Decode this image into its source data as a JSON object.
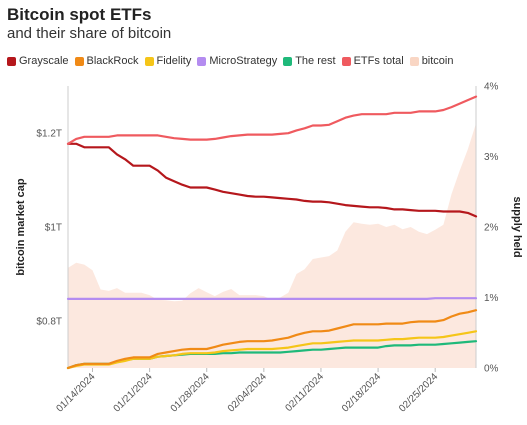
{
  "chart_data": {
    "type": "line",
    "title": "Bitcoin spot ETFs",
    "subtitle": "and their share of bitcoin",
    "ylabel_left": "bitcoin market cap",
    "ylabel_right": "supply held",
    "y_left_ticks": [
      "$0.8T",
      "$1T",
      "$1.2T"
    ],
    "y_right_ticks": [
      "0%",
      "1%",
      "2%",
      "3%",
      "4%"
    ],
    "x_ticks": [
      "01/14/2024",
      "01/21/2024",
      "01/28/2024",
      "02/04/2024",
      "02/11/2024",
      "02/18/2024",
      "02/25/2024"
    ],
    "x_range": [
      "2024-01-11",
      "2024-03-01"
    ],
    "y_left_range": [
      0.7,
      1.3
    ],
    "y_right_range": [
      0,
      4
    ],
    "grid": false,
    "legend_position": "top-left",
    "x": [
      "2024-01-11",
      "2024-01-12",
      "2024-01-13",
      "2024-01-14",
      "2024-01-15",
      "2024-01-16",
      "2024-01-17",
      "2024-01-18",
      "2024-01-19",
      "2024-01-20",
      "2024-01-21",
      "2024-01-22",
      "2024-01-23",
      "2024-01-24",
      "2024-01-25",
      "2024-01-26",
      "2024-01-27",
      "2024-01-28",
      "2024-01-29",
      "2024-01-30",
      "2024-01-31",
      "2024-02-01",
      "2024-02-02",
      "2024-02-03",
      "2024-02-04",
      "2024-02-05",
      "2024-02-06",
      "2024-02-07",
      "2024-02-08",
      "2024-02-09",
      "2024-02-10",
      "2024-02-11",
      "2024-02-12",
      "2024-02-13",
      "2024-02-14",
      "2024-02-15",
      "2024-02-16",
      "2024-02-17",
      "2024-02-18",
      "2024-02-19",
      "2024-02-20",
      "2024-02-21",
      "2024-02-22",
      "2024-02-23",
      "2024-02-24",
      "2024-02-25",
      "2024-02-26",
      "2024-02-27",
      "2024-02-28",
      "2024-02-29",
      "2024-03-01"
    ],
    "series": [
      {
        "name": "Grayscale",
        "color": "#b5171c",
        "axis": "right",
        "values": [
          3.18,
          3.18,
          3.13,
          3.13,
          3.13,
          3.13,
          3.03,
          2.96,
          2.87,
          2.87,
          2.87,
          2.8,
          2.7,
          2.65,
          2.6,
          2.56,
          2.56,
          2.56,
          2.53,
          2.5,
          2.48,
          2.46,
          2.44,
          2.43,
          2.43,
          2.42,
          2.41,
          2.4,
          2.39,
          2.37,
          2.36,
          2.36,
          2.35,
          2.33,
          2.31,
          2.3,
          2.29,
          2.28,
          2.28,
          2.27,
          2.25,
          2.25,
          2.24,
          2.23,
          2.23,
          2.23,
          2.22,
          2.22,
          2.22,
          2.2,
          2.15
        ]
      },
      {
        "name": "BlackRock",
        "color": "#f08a16",
        "axis": "right",
        "values": [
          0.0,
          0.04,
          0.06,
          0.06,
          0.06,
          0.06,
          0.1,
          0.13,
          0.15,
          0.15,
          0.15,
          0.2,
          0.22,
          0.24,
          0.26,
          0.27,
          0.27,
          0.27,
          0.3,
          0.33,
          0.35,
          0.37,
          0.38,
          0.38,
          0.38,
          0.39,
          0.41,
          0.43,
          0.47,
          0.5,
          0.52,
          0.52,
          0.53,
          0.56,
          0.59,
          0.62,
          0.62,
          0.62,
          0.62,
          0.63,
          0.63,
          0.63,
          0.65,
          0.66,
          0.66,
          0.66,
          0.68,
          0.73,
          0.77,
          0.79,
          0.82
        ]
      },
      {
        "name": "Fidelity",
        "color": "#f5c518",
        "axis": "right",
        "values": [
          0.0,
          0.03,
          0.05,
          0.05,
          0.05,
          0.05,
          0.08,
          0.1,
          0.13,
          0.13,
          0.13,
          0.16,
          0.17,
          0.18,
          0.2,
          0.21,
          0.21,
          0.21,
          0.22,
          0.24,
          0.25,
          0.26,
          0.27,
          0.27,
          0.27,
          0.27,
          0.28,
          0.29,
          0.31,
          0.33,
          0.35,
          0.35,
          0.36,
          0.37,
          0.38,
          0.39,
          0.39,
          0.39,
          0.39,
          0.4,
          0.41,
          0.41,
          0.42,
          0.43,
          0.43,
          0.43,
          0.44,
          0.46,
          0.48,
          0.5,
          0.52
        ]
      },
      {
        "name": "MicroStrategy",
        "color": "#b48cf0",
        "axis": "right",
        "values": [
          0.98,
          0.98,
          0.98,
          0.98,
          0.98,
          0.98,
          0.98,
          0.98,
          0.98,
          0.98,
          0.98,
          0.98,
          0.98,
          0.98,
          0.98,
          0.98,
          0.98,
          0.98,
          0.98,
          0.98,
          0.98,
          0.98,
          0.98,
          0.98,
          0.98,
          0.98,
          0.98,
          0.98,
          0.98,
          0.98,
          0.98,
          0.98,
          0.98,
          0.98,
          0.98,
          0.98,
          0.98,
          0.98,
          0.98,
          0.98,
          0.98,
          0.98,
          0.98,
          0.98,
          0.98,
          0.99,
          0.99,
          0.99,
          0.99,
          0.99,
          0.99
        ]
      },
      {
        "name": "The rest",
        "color": "#1fb97a",
        "axis": "right",
        "values": [
          0.0,
          0.04,
          0.06,
          0.06,
          0.06,
          0.06,
          0.09,
          0.11,
          0.13,
          0.13,
          0.13,
          0.16,
          0.17,
          0.18,
          0.19,
          0.2,
          0.2,
          0.2,
          0.2,
          0.21,
          0.21,
          0.22,
          0.22,
          0.22,
          0.22,
          0.22,
          0.22,
          0.23,
          0.24,
          0.25,
          0.26,
          0.26,
          0.27,
          0.28,
          0.29,
          0.29,
          0.29,
          0.29,
          0.29,
          0.31,
          0.32,
          0.32,
          0.32,
          0.33,
          0.33,
          0.33,
          0.34,
          0.35,
          0.36,
          0.37,
          0.38
        ]
      },
      {
        "name": "ETFs total",
        "color": "#ef5a5f",
        "axis": "right",
        "values": [
          3.18,
          3.25,
          3.28,
          3.28,
          3.28,
          3.28,
          3.3,
          3.3,
          3.3,
          3.3,
          3.3,
          3.3,
          3.28,
          3.26,
          3.25,
          3.24,
          3.24,
          3.24,
          3.25,
          3.27,
          3.29,
          3.3,
          3.31,
          3.31,
          3.31,
          3.31,
          3.32,
          3.33,
          3.37,
          3.4,
          3.44,
          3.44,
          3.45,
          3.5,
          3.55,
          3.58,
          3.6,
          3.6,
          3.6,
          3.6,
          3.62,
          3.62,
          3.62,
          3.64,
          3.64,
          3.64,
          3.66,
          3.7,
          3.75,
          3.8,
          3.85
        ]
      },
      {
        "name": "bitcoin",
        "color": "#f9d6c4",
        "type": "area",
        "axis": "left",
        "values": [
          0.913,
          0.924,
          0.92,
          0.908,
          0.867,
          0.864,
          0.87,
          0.86,
          0.86,
          0.86,
          0.855,
          0.845,
          0.844,
          0.842,
          0.843,
          0.859,
          0.87,
          0.861,
          0.853,
          0.862,
          0.868,
          0.855,
          0.855,
          0.855,
          0.853,
          0.845,
          0.85,
          0.86,
          0.9,
          0.91,
          0.932,
          0.935,
          0.938,
          0.95,
          0.99,
          1.01,
          1.007,
          1.005,
          1.007,
          1.0,
          1.005,
          0.995,
          1.0,
          0.99,
          0.985,
          0.994,
          1.005,
          1.07,
          1.12,
          1.165,
          1.22
        ]
      }
    ]
  }
}
